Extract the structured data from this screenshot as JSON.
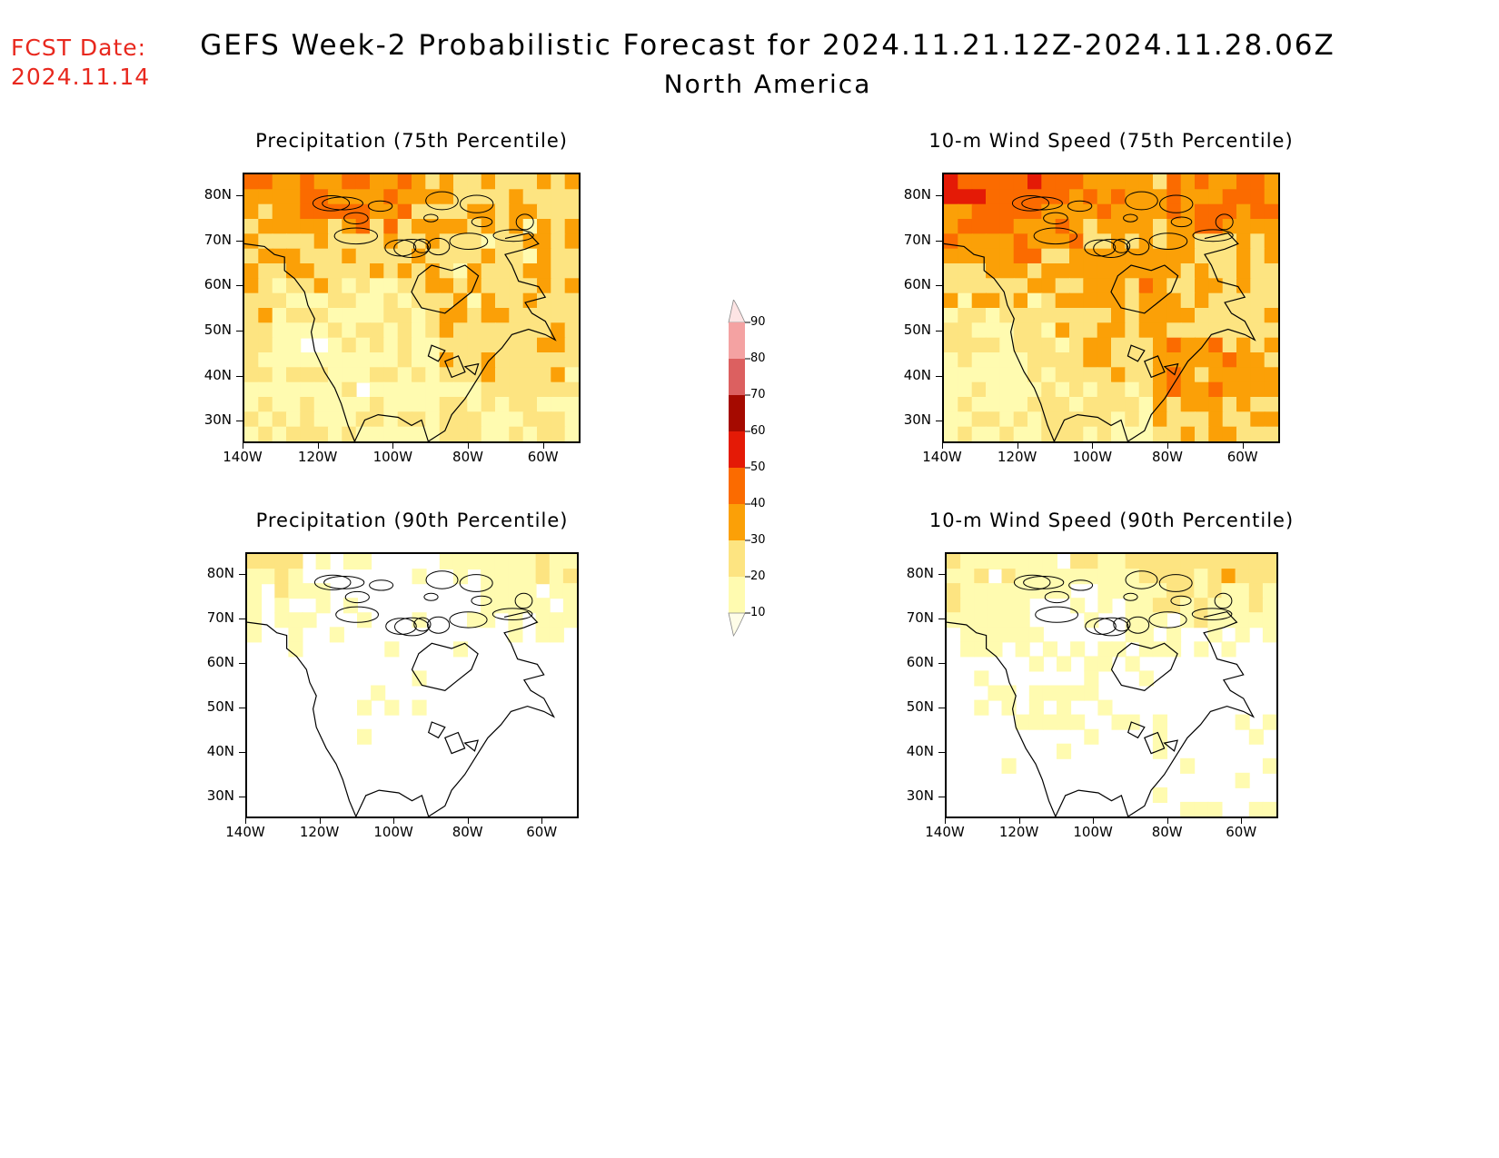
{
  "fcst": {
    "line1": "FCST Date:",
    "line2": "2024.11.14"
  },
  "title": {
    "line1": "GEFS Week-2 Probabilistic Forecast for 2024.11.21.12Z-2024.11.28.06Z",
    "line2": "North America"
  },
  "colorbar": {
    "levels": [
      "10",
      "20",
      "30",
      "40",
      "50",
      "60",
      "70",
      "80",
      "90"
    ],
    "colors": [
      "#fffbb0",
      "#fde481",
      "#fba007",
      "#fb6b00",
      "#e41a06",
      "#a50a00",
      "#dc6060",
      "#f4a2a2",
      "#fde4e4"
    ]
  },
  "axes": {
    "x_ticks": [
      "140W",
      "120W",
      "100W",
      "80W",
      "60W"
    ],
    "y_ticks": [
      "30N",
      "40N",
      "50N",
      "60N",
      "70N",
      "80N"
    ]
  },
  "panels": [
    {
      "id": "precip75",
      "title": "Precipitation (75th Percentile)"
    },
    {
      "id": "wind75",
      "title": "10-m Wind Speed (75th Percentile)"
    },
    {
      "id": "precip90",
      "title": "Precipitation (90th Percentile)"
    },
    {
      "id": "wind90",
      "title": "10-m Wind Speed (90th Percentile)"
    }
  ]
}
